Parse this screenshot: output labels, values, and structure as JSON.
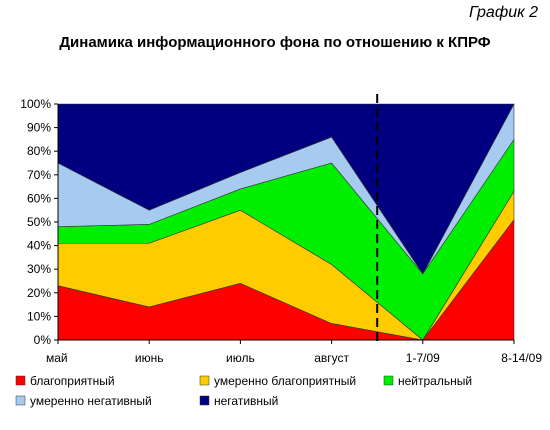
{
  "figure_label": "График 2",
  "chart_data": {
    "type": "area",
    "stacked": true,
    "title": "Динамика информационного фона по отношению к КПРФ",
    "x": [
      "май",
      "июнь",
      "июль",
      "август",
      "1-7/09",
      "8-14/09"
    ],
    "y_ticks": [
      "0%",
      "10%",
      "20%",
      "30%",
      "40%",
      "50%",
      "60%",
      "70%",
      "80%",
      "90%",
      "100%"
    ],
    "ylim": [
      0,
      100
    ],
    "grid": false,
    "divider_after_index": 3,
    "legend_position": "bottom",
    "series": [
      {
        "name": "благоприятный",
        "color": "#ff0000",
        "values": [
          23,
          14,
          24,
          7,
          0,
          51
        ]
      },
      {
        "name": "умеренно благоприятный",
        "color": "#ffcc00",
        "values": [
          18,
          27,
          31,
          25,
          0,
          12
        ]
      },
      {
        "name": "нейтральный",
        "color": "#00ee00",
        "values": [
          7,
          8,
          9,
          43,
          28,
          22
        ]
      },
      {
        "name": "умеренно негативный",
        "color": "#a6caf0",
        "values": [
          27,
          6,
          7,
          11,
          0,
          15
        ]
      },
      {
        "name": "негативный",
        "color": "#000080",
        "values": [
          25,
          45,
          29,
          14,
          72,
          0
        ]
      }
    ]
  }
}
